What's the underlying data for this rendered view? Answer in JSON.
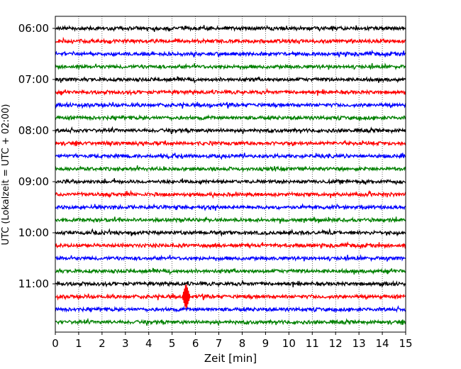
{
  "chart_data": {
    "type": "line",
    "title": "",
    "xlabel": "Zeit  [min]",
    "ylabel": "UTC (Lokalzeit = UTC + 02:00)",
    "xlim": [
      0,
      15
    ],
    "x_ticks": [
      0,
      1,
      2,
      3,
      4,
      5,
      6,
      7,
      8,
      9,
      10,
      11,
      12,
      13,
      14,
      15
    ],
    "y_tick_labels": [
      "06:00",
      "07:00",
      "08:00",
      "09:00",
      "10:00",
      "11:00"
    ],
    "grid": "vertical dotted lines at each minute",
    "trace_colors": [
      "#000000",
      "#ff0000",
      "#0000ff",
      "#008000"
    ],
    "traces": [
      {
        "start": "06:00",
        "color": "#000000"
      },
      {
        "start": "06:15",
        "color": "#ff0000"
      },
      {
        "start": "06:30",
        "color": "#0000ff"
      },
      {
        "start": "06:45",
        "color": "#008000"
      },
      {
        "start": "07:00",
        "color": "#000000"
      },
      {
        "start": "07:15",
        "color": "#ff0000"
      },
      {
        "start": "07:30",
        "color": "#0000ff"
      },
      {
        "start": "07:45",
        "color": "#008000"
      },
      {
        "start": "08:00",
        "color": "#000000"
      },
      {
        "start": "08:15",
        "color": "#ff0000"
      },
      {
        "start": "08:30",
        "color": "#0000ff"
      },
      {
        "start": "08:45",
        "color": "#008000"
      },
      {
        "start": "09:00",
        "color": "#000000"
      },
      {
        "start": "09:15",
        "color": "#ff0000"
      },
      {
        "start": "09:30",
        "color": "#0000ff"
      },
      {
        "start": "09:45",
        "color": "#008000"
      },
      {
        "start": "10:00",
        "color": "#000000"
      },
      {
        "start": "10:15",
        "color": "#ff0000"
      },
      {
        "start": "10:30",
        "color": "#0000ff"
      },
      {
        "start": "10:45",
        "color": "#008000"
      },
      {
        "start": "11:00",
        "color": "#000000"
      },
      {
        "start": "11:15",
        "color": "#ff0000",
        "event_minute": 5.6
      },
      {
        "start": "11:30",
        "color": "#0000ff"
      },
      {
        "start": "11:45",
        "color": "#008000"
      }
    ]
  }
}
